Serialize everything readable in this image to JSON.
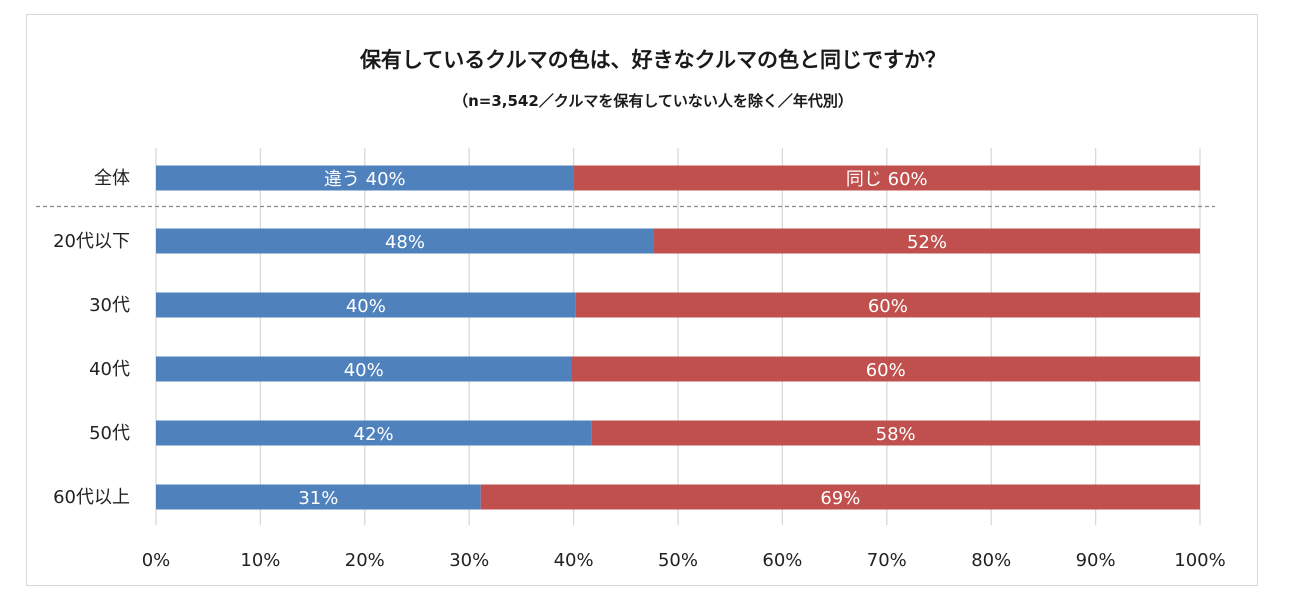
{
  "chart_data": {
    "type": "bar",
    "orientation": "horizontal",
    "stacked": true,
    "title": "保有しているクルマの色は、好きなクルマの色と同じですか？",
    "subtitle": "（n=3,542／クルマを保有していない人を除く／年代別）",
    "categories": [
      "全体",
      "20代以下",
      "30代",
      "40代",
      "50代",
      "60代以上"
    ],
    "series": [
      {
        "name": "違う",
        "color": "#4f81bd",
        "values": [
          40,
          47.7,
          40.2,
          39.8,
          41.7,
          31.1
        ],
        "labels": [
          "違う 40%",
          "48%",
          "40%",
          "40%",
          "42%",
          "31%"
        ]
      },
      {
        "name": "同じ",
        "color": "#c0504d",
        "values": [
          60,
          52.3,
          59.8,
          60.2,
          58.3,
          68.9
        ],
        "labels": [
          "同じ 60%",
          "52%",
          "60%",
          "60%",
          "58%",
          "69%"
        ]
      }
    ],
    "xlim": [
      0,
      100
    ],
    "xticks": [
      "0%",
      "10%",
      "20%",
      "30%",
      "40%",
      "50%",
      "60%",
      "70%",
      "80%",
      "90%",
      "100%"
    ],
    "grid": true,
    "separator_after_category": "全体"
  }
}
